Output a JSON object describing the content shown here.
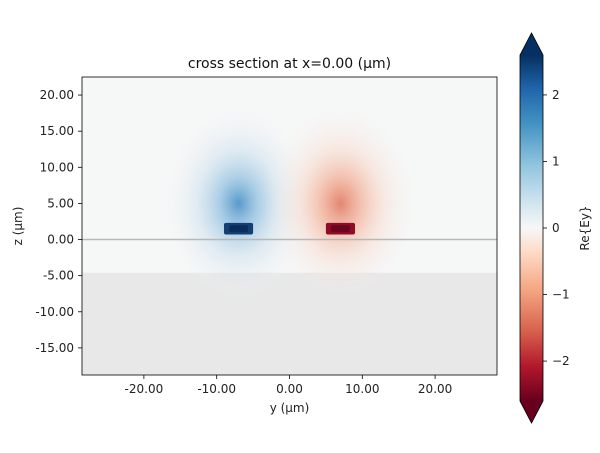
{
  "chart_data": {
    "type": "heatmap",
    "title": "cross section at x=0.00 (µm)",
    "xlabel": "y (µm)",
    "ylabel": "z (µm)",
    "xlim": [
      -28.5,
      28.5
    ],
    "ylim": [
      -18.75,
      22.5
    ],
    "x_ticks": [
      -20,
      -10,
      0,
      10,
      20
    ],
    "x_tick_labels": [
      "-20.00",
      "-10.00",
      "0.00",
      "10.00",
      "20.00"
    ],
    "y_ticks": [
      -15,
      -10,
      -5,
      0,
      5,
      10,
      15,
      20
    ],
    "y_tick_labels": [
      "-15.00",
      "-10.00",
      "-5.00",
      "0.00",
      "5.00",
      "10.00",
      "15.00",
      "20.00"
    ],
    "grid": false,
    "colorbar": {
      "label": "Re{Ey}",
      "colormap": "RdBu",
      "range": [
        -2.6,
        2.6
      ],
      "ticks": [
        -2,
        -1,
        0,
        1,
        2
      ],
      "tick_labels": [
        "−2",
        "−1",
        "0",
        "1",
        "2"
      ],
      "extend": "both"
    },
    "substrate_top_z": -4.6,
    "interface_z": 0,
    "lobes": [
      {
        "y_center": -7.0,
        "z_center": 1.5,
        "width": 4.0,
        "height": 1.6,
        "peak": 2.6
      },
      {
        "y_center": 7.0,
        "z_center": 1.5,
        "width": 4.0,
        "height": 1.6,
        "peak": -2.6
      }
    ]
  }
}
